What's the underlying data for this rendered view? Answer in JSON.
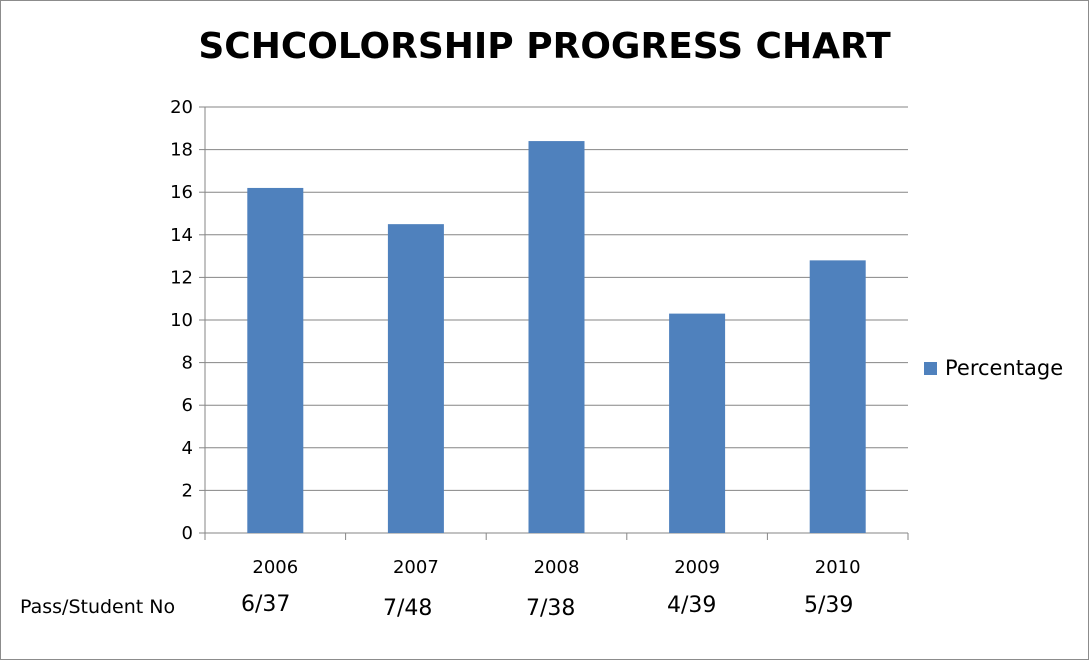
{
  "chart_data": {
    "type": "bar",
    "title": "SCHCOLORSHIP PROGRESS CHART",
    "categories": [
      "2006",
      "2007",
      "2008",
      "2009",
      "2010"
    ],
    "series": [
      {
        "name": "Percentage",
        "values": [
          16.2,
          14.5,
          18.4,
          10.3,
          12.8
        ],
        "color": "#4f81bd"
      }
    ],
    "ylim": [
      0,
      20
    ],
    "yticks": [
      0,
      2,
      4,
      6,
      8,
      10,
      12,
      14,
      16,
      18,
      20
    ],
    "grid": true,
    "legend_position": "right",
    "xlabel": "",
    "ylabel": ""
  },
  "footer": {
    "row_label": "Pass/Student No",
    "ratios": [
      "6/37",
      "7/48",
      "7/38",
      "4/39",
      "5/39"
    ]
  }
}
